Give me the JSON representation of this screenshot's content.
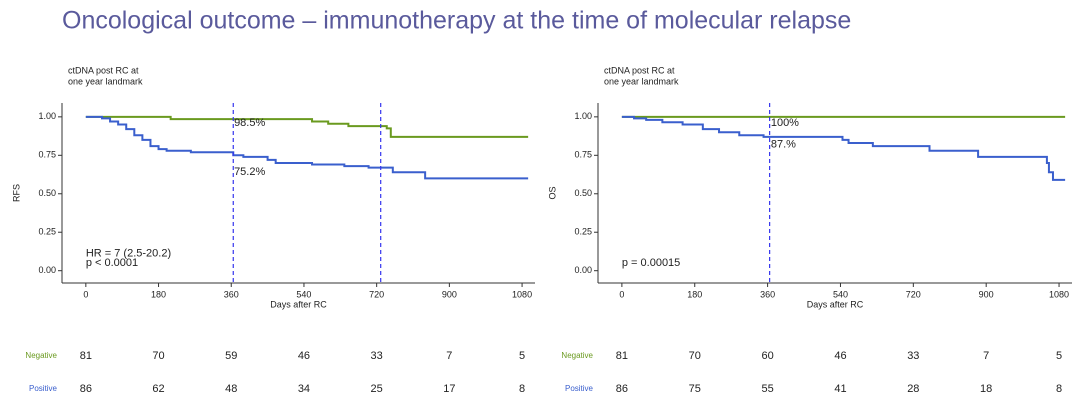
{
  "title": "Oncological outcome – immunotherapy at the time of molecular relapse",
  "chart_data": [
    {
      "type": "step",
      "legend_title": [
        "ctDNA post RC at",
        "one year landmark"
      ],
      "ylabel": "RFS",
      "xlabel": "Days after RC",
      "xlim": [
        -59,
        1112
      ],
      "ylim": [
        -0.08,
        1.09
      ],
      "xticks": [
        0,
        180,
        360,
        540,
        720,
        900,
        1080
      ],
      "yticks": [
        {
          "value": 0,
          "label": "0.00"
        },
        {
          "value": 0.25,
          "label": "0.25"
        },
        {
          "value": 0.5,
          "label": "0.50"
        },
        {
          "value": 0.75,
          "label": "0.75"
        },
        {
          "value": 1,
          "label": "1.00"
        }
      ],
      "reference_lines": [
        365,
        730
      ],
      "annotations": [
        "98.5%",
        "75.2%",
        "HR = 7 (2.5-20.2)",
        "p < 0.0001"
      ],
      "series": [
        {
          "name": "Negative",
          "color": "#6a9a1f",
          "x": [
            0,
            210,
            560,
            600,
            650,
            745,
            755,
            1095
          ],
          "values": [
            1.0,
            0.985,
            0.97,
            0.955,
            0.94,
            0.925,
            0.87,
            0.87
          ],
          "at_risk": [
            81,
            70,
            59,
            46,
            33,
            7,
            5
          ]
        },
        {
          "name": "Positive",
          "color": "#3a5fcd",
          "x": [
            0,
            40,
            60,
            80,
            100,
            120,
            140,
            160,
            180,
            200,
            260,
            365,
            390,
            450,
            470,
            560,
            640,
            700,
            760,
            840,
            1095
          ],
          "values": [
            1.0,
            0.99,
            0.97,
            0.95,
            0.92,
            0.88,
            0.85,
            0.81,
            0.79,
            0.78,
            0.77,
            0.75,
            0.74,
            0.72,
            0.7,
            0.69,
            0.68,
            0.67,
            0.64,
            0.6,
            0.6
          ],
          "at_risk": [
            86,
            62,
            48,
            34,
            25,
            17,
            8
          ]
        }
      ]
    },
    {
      "type": "step",
      "legend_title": [
        "ctDNA post RC at",
        "one year landmark"
      ],
      "ylabel": "OS",
      "xlabel": "Days after RC",
      "xlim": [
        -59,
        1112
      ],
      "ylim": [
        -0.08,
        1.09
      ],
      "xticks": [
        0,
        180,
        360,
        540,
        720,
        900,
        1080
      ],
      "yticks": [
        {
          "value": 0,
          "label": "0.00"
        },
        {
          "value": 0.25,
          "label": "0.25"
        },
        {
          "value": 0.5,
          "label": "0.50"
        },
        {
          "value": 0.75,
          "label": "0.75"
        },
        {
          "value": 1,
          "label": "1.00"
        }
      ],
      "reference_lines": [
        365
      ],
      "annotations": [
        "100%",
        "87.%",
        "p = 0.00015"
      ],
      "series": [
        {
          "name": "Negative",
          "color": "#6a9a1f",
          "x": [
            0,
            1095
          ],
          "values": [
            1.0,
            1.0
          ],
          "at_risk": [
            81,
            70,
            60,
            46,
            33,
            7,
            5
          ]
        },
        {
          "name": "Positive",
          "color": "#3a5fcd",
          "x": [
            0,
            30,
            60,
            100,
            150,
            200,
            240,
            290,
            350,
            545,
            560,
            620,
            760,
            880,
            1050,
            1055,
            1065,
            1095
          ],
          "values": [
            1.0,
            0.99,
            0.98,
            0.965,
            0.95,
            0.92,
            0.9,
            0.88,
            0.87,
            0.85,
            0.83,
            0.81,
            0.78,
            0.74,
            0.7,
            0.64,
            0.59,
            0.59
          ],
          "at_risk": [
            86,
            75,
            55,
            41,
            28,
            18,
            8
          ]
        }
      ]
    }
  ]
}
